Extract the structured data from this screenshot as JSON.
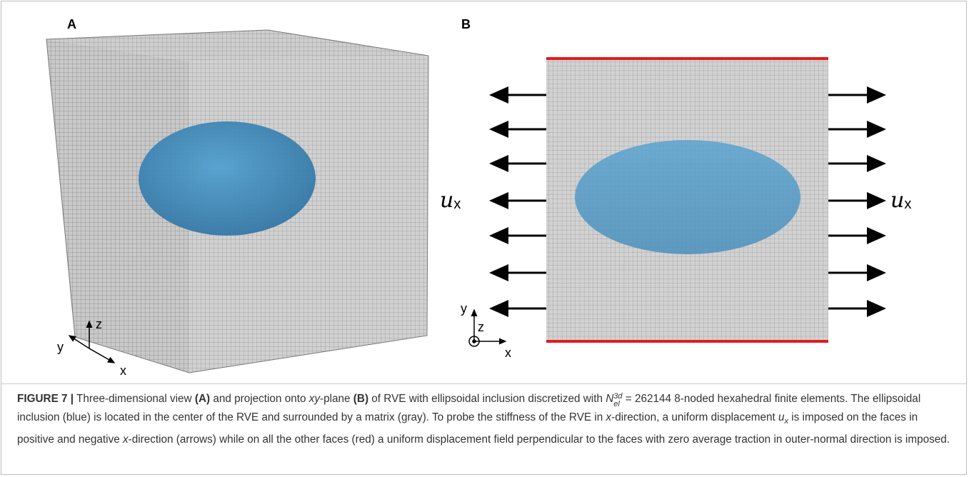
{
  "panels": [
    {
      "label": "A",
      "axes": {
        "x": "x",
        "y": "y",
        "z": "z"
      }
    },
    {
      "label": "B",
      "axes": {
        "x": "x",
        "y": "y",
        "z": "z"
      },
      "load_label": {
        "symbol": "u",
        "subscript": "x"
      }
    }
  ],
  "caption": {
    "parts": [
      "FIGURE 7 |",
      " Three-dimensional view ",
      "(A)",
      " and projection onto ",
      "xy",
      "-plane ",
      "(B)",
      " of RVE with ellipsoidal inclusion discretized with ",
      "N",
      "3d",
      "el",
      " = 262144 8-noded hexahedral finite elements. The ellipsoidal inclusion (blue) is located in the center of the RVE and surrounded by a matrix (gray). To probe the stiffness of the RVE in ",
      "x",
      "-direction, a uniform displacement ",
      "u",
      "x",
      " is imposed on the faces in positive and negative ",
      "x",
      "-direction (arrows) while on all the other faces (red) a uniform displacement field perpendicular to the faces with zero average traction in outer-normal direction is imposed."
    ]
  }
}
